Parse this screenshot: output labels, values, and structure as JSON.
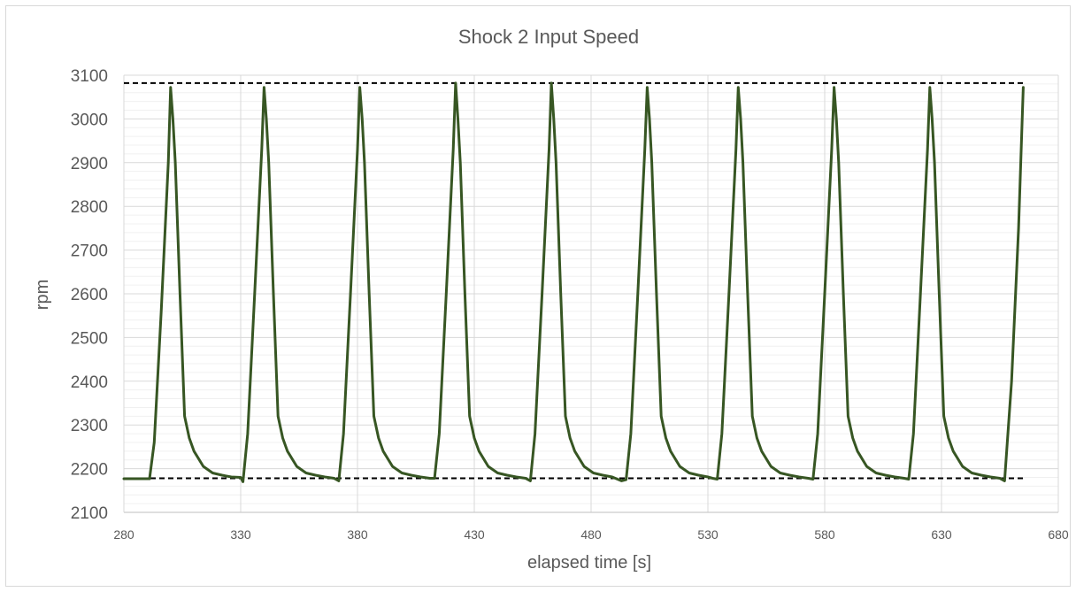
{
  "chart_data": {
    "type": "line",
    "title": "Shock 2 Input Speed",
    "xlabel": "elapsed time [s]",
    "ylabel": "rpm",
    "xlim": [
      280,
      680
    ],
    "ylim": [
      2100,
      3100
    ],
    "xticks": [
      280,
      330,
      380,
      430,
      480,
      530,
      580,
      630,
      680
    ],
    "yticks": [
      2100,
      2200,
      2300,
      2400,
      2500,
      2600,
      2700,
      2800,
      2900,
      3000,
      3100
    ],
    "grid": true,
    "legend": "none",
    "series": [
      {
        "color": "#375623",
        "x": [
          280,
          291,
          293,
          296,
          299,
          300,
          301,
          302,
          304,
          306,
          308,
          310,
          314,
          318,
          322,
          326,
          330,
          331,
          333,
          336,
          339,
          340,
          341,
          342,
          344,
          346,
          348,
          350,
          354,
          358,
          362,
          366,
          370,
          372,
          374,
          377,
          380,
          381,
          382,
          383,
          385,
          387,
          389,
          391,
          395,
          399,
          403,
          407,
          411,
          413,
          415,
          418,
          421,
          422,
          423,
          424,
          426,
          428,
          430,
          432,
          436,
          440,
          444,
          448,
          452,
          454,
          456,
          459,
          462,
          463,
          464,
          465,
          467,
          469,
          471,
          473,
          477,
          481,
          485,
          489,
          493,
          495,
          497,
          500,
          503,
          504,
          505,
          506,
          508,
          510,
          512,
          514,
          518,
          522,
          526,
          530,
          532,
          534,
          536,
          539,
          542,
          543,
          544,
          545,
          547,
          549,
          551,
          553,
          557,
          561,
          565,
          569,
          573,
          575,
          577,
          580,
          583,
          584,
          585,
          586,
          588,
          590,
          592,
          594,
          598,
          602,
          606,
          610,
          614,
          616,
          618,
          621,
          624,
          625,
          626,
          627,
          629,
          631,
          633,
          635,
          639,
          643,
          647,
          651,
          655,
          657,
          660,
          663,
          665
        ],
        "y": [
          2177,
          2177,
          2260,
          2560,
          2900,
          3072,
          3000,
          2900,
          2600,
          2320,
          2270,
          2240,
          2205,
          2190,
          2185,
          2181,
          2180,
          2170,
          2280,
          2600,
          2930,
          3072,
          3000,
          2900,
          2600,
          2320,
          2270,
          2240,
          2205,
          2190,
          2185,
          2181,
          2178,
          2172,
          2280,
          2600,
          2930,
          3072,
          3000,
          2900,
          2600,
          2320,
          2270,
          2240,
          2205,
          2190,
          2185,
          2181,
          2178,
          2178,
          2280,
          2600,
          2930,
          3082,
          3000,
          2900,
          2600,
          2320,
          2270,
          2240,
          2205,
          2190,
          2185,
          2181,
          2178,
          2172,
          2280,
          2600,
          2930,
          3082,
          3000,
          2900,
          2600,
          2320,
          2270,
          2240,
          2205,
          2190,
          2185,
          2181,
          2172,
          2175,
          2280,
          2600,
          2930,
          3072,
          3000,
          2900,
          2600,
          2320,
          2270,
          2240,
          2205,
          2190,
          2185,
          2181,
          2178,
          2176,
          2280,
          2600,
          2930,
          3072,
          3000,
          2900,
          2600,
          2320,
          2270,
          2240,
          2205,
          2190,
          2185,
          2181,
          2178,
          2176,
          2280,
          2600,
          2930,
          3072,
          3000,
          2900,
          2600,
          2320,
          2270,
          2240,
          2205,
          2190,
          2185,
          2181,
          2178,
          2176,
          2280,
          2600,
          2930,
          3072,
          3000,
          2900,
          2600,
          2320,
          2270,
          2240,
          2205,
          2190,
          2185,
          2181,
          2178,
          2172,
          2400,
          2750,
          3072
        ]
      }
    ],
    "reference_lines": [
      {
        "y": 3082,
        "style": "dashed",
        "color": "#000000",
        "x_range": [
          280,
          665
        ]
      },
      {
        "y": 2178,
        "style": "dashed",
        "color": "#000000",
        "x_range": [
          280,
          665
        ]
      }
    ]
  }
}
